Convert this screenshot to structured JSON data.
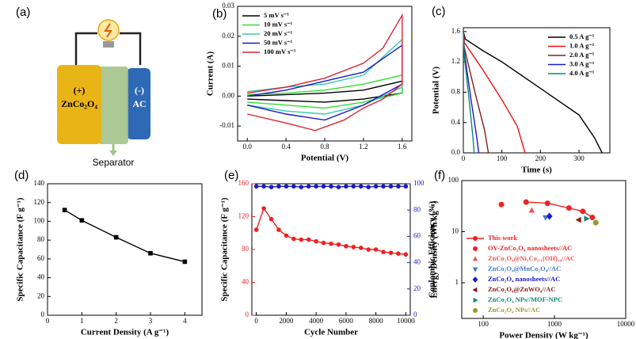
{
  "diagram": {
    "label": "(a)",
    "positive": "(+)",
    "positive_material": "ZnCo₂O₄",
    "negative": "(-)",
    "negative_material": "AC",
    "separator": "Separator"
  },
  "chart_data": [
    {
      "type": "line",
      "label": "(b)",
      "xlabel": "Potential (V)",
      "ylabel": "Current (A)",
      "xlim": [
        -0.1,
        1.7
      ],
      "xticks": [
        {
          "value": 0,
          "label": "0.0"
        },
        0.4,
        0.8,
        1.2,
        1.6
      ],
      "ylim": [
        -0.015,
        0.03
      ],
      "yticks": [
        -0.01,
        {
          "value": 0,
          "label": "0.00"
        },
        0.01,
        0.02,
        0.03
      ],
      "legend": "upper left",
      "series": [
        {
          "name": "5 mV s⁻¹",
          "color": "#000000",
          "x": [
            0,
            0.8,
            1.2,
            1.6,
            1.6,
            1.2,
            0.8,
            0.4,
            0
          ],
          "values": [
            0,
            0.001,
            0.002,
            0.005,
            0.001,
            -0.001,
            -0.002,
            -0.0015,
            -0.001
          ]
        },
        {
          "name": "10 mV s⁻¹",
          "color": "#33dd33",
          "x": [
            0,
            0.4,
            0.8,
            1.2,
            1.6,
            1.6,
            1.2,
            0.8,
            0.4,
            0
          ],
          "values": [
            0.0005,
            0.001,
            0.002,
            0.004,
            0.007,
            0.001,
            -0.002,
            -0.004,
            -0.003,
            -0.002
          ]
        },
        {
          "name": "20 mV s⁻¹",
          "color": "#33ccaa",
          "x": [
            0,
            0.4,
            0.8,
            1.2,
            1.6,
            1.6,
            1.2,
            0.8,
            0.4,
            0
          ],
          "values": [
            0.0015,
            0.003,
            0.004,
            0.007,
            0.019,
            0.003,
            -0.003,
            -0.006,
            -0.005,
            -0.003
          ]
        },
        {
          "name": "50 mV s⁻¹",
          "color": "#1a1acc",
          "x": [
            0,
            0.4,
            0.8,
            1.2,
            1.6,
            1.6,
            1.2,
            0.8,
            0.4,
            0
          ],
          "values": [
            0,
            0.002,
            0.005,
            0.008,
            0.017,
            0.004,
            -0.003,
            -0.008,
            -0.006,
            -0.003
          ]
        },
        {
          "name": "100 mV s⁻¹",
          "color": "#dd2233",
          "x": [
            0,
            0.4,
            0.8,
            1.2,
            1.4,
            1.6,
            1.6,
            1.4,
            1.2,
            1.0,
            0.7,
            0.4,
            0
          ],
          "values": [
            0.001,
            0.003,
            0.006,
            0.011,
            0.016,
            0.027,
            0.004,
            -0.001,
            -0.004,
            -0.008,
            -0.0115,
            -0.009,
            -0.006
          ]
        }
      ]
    },
    {
      "type": "line",
      "label": "(c)",
      "xlabel": "Time (s)",
      "ylabel": "Potential (V)",
      "xlim": [
        0,
        380
      ],
      "xticks": [
        0,
        100,
        200,
        300
      ],
      "ylim": [
        0,
        1.65
      ],
      "yticks": [
        {
          "value": 0,
          "label": "0.0"
        },
        0.4,
        0.8,
        1.2,
        1.6
      ],
      "legend": "upper right",
      "series": [
        {
          "name": "0.5 A g⁻¹",
          "color": "#000000",
          "x": [
            0,
            5,
            50,
            100,
            200,
            300,
            340,
            360
          ],
          "values": [
            1.6,
            1.5,
            1.35,
            1.2,
            0.85,
            0.5,
            0.2,
            0
          ]
        },
        {
          "name": "1.0 A g⁻¹",
          "color": "#ee1111",
          "x": [
            0,
            3,
            50,
            100,
            140,
            160
          ],
          "values": [
            1.6,
            1.45,
            1.1,
            0.7,
            0.35,
            0
          ]
        },
        {
          "name": "2.0 A g⁻¹",
          "color": "#8b1a1a",
          "x": [
            0,
            2,
            30,
            55,
            65
          ],
          "values": [
            1.6,
            1.4,
            0.8,
            0.3,
            0
          ]
        },
        {
          "name": "3.0 A g⁻¹",
          "color": "#1a1acc",
          "x": [
            0,
            2,
            20,
            35,
            40
          ],
          "values": [
            1.6,
            1.35,
            0.7,
            0.2,
            0
          ]
        },
        {
          "name": "4.0 A g⁻¹",
          "color": "#118877",
          "x": [
            0,
            2,
            15,
            25,
            28
          ],
          "values": [
            1.6,
            1.3,
            0.7,
            0.2,
            0
          ]
        }
      ]
    },
    {
      "type": "line",
      "label": "(d)",
      "xlabel": "Current Density (A g⁻¹)",
      "ylabel": "Specific Capacitance (F g⁻¹)",
      "xlim": [
        0,
        4.5
      ],
      "xticks": [
        0,
        1,
        2,
        3,
        4
      ],
      "ylim": [
        0,
        140
      ],
      "yticks": [
        0,
        20,
        40,
        60,
        80,
        100,
        120,
        140
      ],
      "series": [
        {
          "color": "#000000",
          "marker": "square",
          "x": [
            0.5,
            1,
            2,
            3,
            4
          ],
          "values": [
            112,
            101,
            83,
            66,
            57
          ]
        }
      ]
    },
    {
      "type": "line",
      "label": "(e)",
      "xlabel": "Cycle Number",
      "ylabel": "Specific Capacitance (F g⁻¹)",
      "y2label": "Coulombic Efficiency (%)",
      "xlim": [
        -300,
        10300
      ],
      "xticks": [
        0,
        2000,
        4000,
        6000,
        8000,
        10000
      ],
      "ylim": [
        0,
        160
      ],
      "yticks": [
        0,
        40,
        80,
        120,
        160
      ],
      "y2lim": [
        0,
        100
      ],
      "y2ticks": [
        0,
        20,
        40,
        60,
        80,
        100
      ],
      "x": [
        0,
        500,
        1000,
        1500,
        2000,
        2500,
        3000,
        3500,
        4000,
        4500,
        5000,
        5500,
        6000,
        6500,
        7000,
        7500,
        8000,
        8500,
        9000,
        9500,
        10000
      ],
      "series": [
        {
          "color": "#ee2222",
          "marker": "circle",
          "values": [
            104,
            130,
            117,
            104,
            97,
            93,
            92,
            92,
            90,
            88,
            87,
            86,
            84,
            83,
            82,
            80,
            80,
            77,
            76,
            75,
            74
          ]
        },
        {
          "color": "#1a1acc",
          "marker": "circle",
          "axis": "y2",
          "values": [
            98,
            98,
            97.5,
            98,
            98,
            98,
            97.5,
            98,
            98,
            98,
            98,
            97.5,
            98,
            98,
            98,
            97.5,
            98,
            98,
            98,
            98,
            98
          ]
        }
      ]
    },
    {
      "type": "line",
      "label": "(f)",
      "xlabel": "Power Density (W kg⁻¹)",
      "ylabel": "Energy Density (Wh kg⁻¹)",
      "xscale": "log",
      "yscale": "log",
      "xlim": [
        50,
        10000
      ],
      "xticks": [
        100,
        1000,
        10000
      ],
      "ylim": [
        0.2,
        100
      ],
      "yticks": [
        1,
        10,
        100
      ],
      "legend": "lower left",
      "legend_text_colored": true,
      "series": [
        {
          "name": "This work",
          "color": "#ee2222",
          "marker": "circle",
          "x": [
            400,
            800,
            1600,
            2500,
            3400
          ],
          "values": [
            38,
            36,
            29,
            25,
            19
          ]
        },
        {
          "name": "OV-ZnCo₂O₄ nanosheets//AC",
          "color": "#ee2222",
          "marker": "circle",
          "line": false,
          "x": [
            180
          ],
          "values": [
            34
          ]
        },
        {
          "name": "ZnCo₂O₄@Ni₃Co₂.₁(OH)₁₀//AC",
          "color": "#ee5555",
          "marker": "triangle-up",
          "line": false,
          "x": [
            480
          ],
          "values": [
            26
          ]
        },
        {
          "name": "ZnCo₂O₄@MnCo₂O₄//AC",
          "color": "#4477cc",
          "marker": "triangle-down",
          "line": false,
          "x": [
            750
          ],
          "values": [
            19
          ]
        },
        {
          "name": "ZnCo₂O₄ nanosheets//AC",
          "color": "#1a1acc",
          "marker": "diamond",
          "line": false,
          "x": [
            850
          ],
          "values": [
            20
          ]
        },
        {
          "name": "ZnCo₂O₄@ZnWO₄//AC",
          "color": "#8b1a1a",
          "marker": "triangle-left",
          "line": false,
          "x": [
            2200
          ],
          "values": [
            17
          ]
        },
        {
          "name": "ZnCo₂O₄ NPs//MOF-NPC",
          "color": "#118877",
          "marker": "triangle-right",
          "line": false,
          "x": [
            2800
          ],
          "values": [
            18
          ]
        },
        {
          "name": "ZnCo₂O₄ NPs//AC",
          "color": "#999933",
          "marker": "circle",
          "line": false,
          "x": [
            3800
          ],
          "values": [
            15
          ]
        }
      ]
    }
  ]
}
